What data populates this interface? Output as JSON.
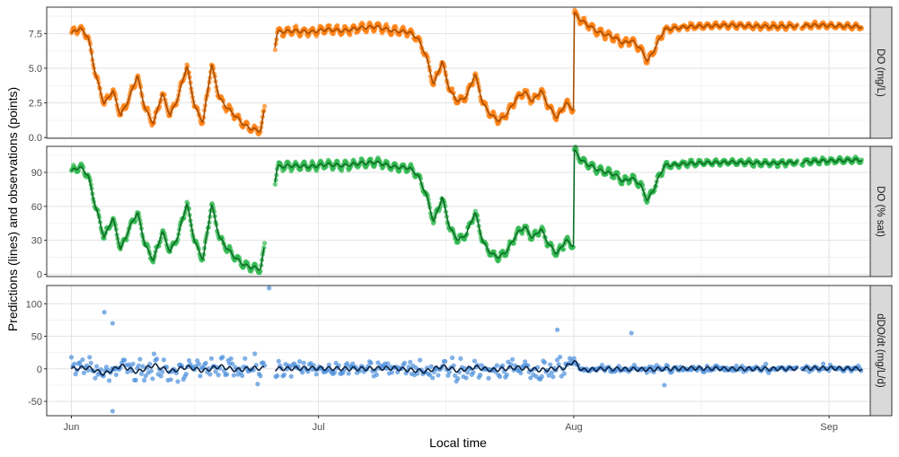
{
  "chart_data": {
    "type": "scatter",
    "xlabel": "Local time",
    "ylabel": "Predictions (lines) and observations (points)",
    "x_axis": {
      "type": "date",
      "range": [
        "2012-05-29",
        "2012-09-06"
      ],
      "ticks": [
        {
          "value": "2012-06-01",
          "label": "Jun"
        },
        {
          "value": "2012-07-01",
          "label": "Jul"
        },
        {
          "value": "2012-08-01",
          "label": "Aug"
        },
        {
          "value": "2012-09-01",
          "label": "Sep"
        }
      ]
    },
    "grid": true,
    "panels": [
      {
        "strip": "DO (mg/L)",
        "ylim": [
          -0.05,
          9.4
        ],
        "yticks": [
          0.0,
          2.5,
          5.0,
          7.5
        ],
        "ytick_labels": [
          "0.0",
          "2.5",
          "5.0",
          "7.5"
        ],
        "point_color": "#ff7f0e",
        "line_color": "#a64c00",
        "series": [
          {
            "x": "2012-06-01",
            "y": 7.5
          },
          {
            "x": "2012-06-02",
            "y": 7.9
          },
          {
            "x": "2012-06-03",
            "y": 7.3
          },
          {
            "x": "2012-06-04",
            "y": 4.4
          },
          {
            "x": "2012-06-05",
            "y": 2.4
          },
          {
            "x": "2012-06-06",
            "y": 3.4
          },
          {
            "x": "2012-06-07",
            "y": 1.6
          },
          {
            "x": "2012-06-08",
            "y": 2.8
          },
          {
            "x": "2012-06-09",
            "y": 4.5
          },
          {
            "x": "2012-06-10",
            "y": 2.0
          },
          {
            "x": "2012-06-11",
            "y": 1.0
          },
          {
            "x": "2012-06-12",
            "y": 3.2
          },
          {
            "x": "2012-06-13",
            "y": 1.6
          },
          {
            "x": "2012-06-14",
            "y": 3.0
          },
          {
            "x": "2012-06-15",
            "y": 5.2
          },
          {
            "x": "2012-06-16",
            "y": 2.2
          },
          {
            "x": "2012-06-17",
            "y": 1.1
          },
          {
            "x": "2012-06-18",
            "y": 5.3
          },
          {
            "x": "2012-06-19",
            "y": 2.8
          },
          {
            "x": "2012-06-20",
            "y": 2.1
          },
          {
            "x": "2012-06-21",
            "y": 1.5
          },
          {
            "x": "2012-06-22",
            "y": 0.9
          },
          {
            "x": "2012-06-23",
            "y": 0.6
          },
          {
            "x": "2012-06-24",
            "y": 0.5
          },
          {
            "x": "2012-06-26",
            "y": 7.6
          },
          {
            "x": "2012-06-28",
            "y": 7.7
          },
          {
            "x": "2012-06-30",
            "y": 7.6
          },
          {
            "x": "2012-07-02",
            "y": 7.8
          },
          {
            "x": "2012-07-04",
            "y": 7.7
          },
          {
            "x": "2012-07-06",
            "y": 7.9
          },
          {
            "x": "2012-07-08",
            "y": 8.0
          },
          {
            "x": "2012-07-10",
            "y": 7.7
          },
          {
            "x": "2012-07-12",
            "y": 7.6
          },
          {
            "x": "2012-07-13",
            "y": 7.2
          },
          {
            "x": "2012-07-14",
            "y": 6.0
          },
          {
            "x": "2012-07-15",
            "y": 3.8
          },
          {
            "x": "2012-07-16",
            "y": 5.5
          },
          {
            "x": "2012-07-17",
            "y": 3.3
          },
          {
            "x": "2012-07-18",
            "y": 2.6
          },
          {
            "x": "2012-07-19",
            "y": 3.0
          },
          {
            "x": "2012-07-20",
            "y": 4.6
          },
          {
            "x": "2012-07-21",
            "y": 2.4
          },
          {
            "x": "2012-07-22",
            "y": 1.6
          },
          {
            "x": "2012-07-23",
            "y": 1.2
          },
          {
            "x": "2012-07-24",
            "y": 1.8
          },
          {
            "x": "2012-07-25",
            "y": 2.8
          },
          {
            "x": "2012-07-26",
            "y": 3.3
          },
          {
            "x": "2012-07-27",
            "y": 2.6
          },
          {
            "x": "2012-07-28",
            "y": 3.4
          },
          {
            "x": "2012-07-29",
            "y": 2.2
          },
          {
            "x": "2012-07-30",
            "y": 1.4
          },
          {
            "x": "2012-07-31",
            "y": 2.5
          },
          {
            "x": "2012-08-01",
            "y": 2.0
          },
          {
            "x": "2012-08-01",
            "y": 9.0
          },
          {
            "x": "2012-08-02",
            "y": 8.4
          },
          {
            "x": "2012-08-03",
            "y": 8.0
          },
          {
            "x": "2012-08-04",
            "y": 7.6
          },
          {
            "x": "2012-08-05",
            "y": 7.4
          },
          {
            "x": "2012-08-06",
            "y": 7.2
          },
          {
            "x": "2012-08-07",
            "y": 6.8
          },
          {
            "x": "2012-08-08",
            "y": 7.0
          },
          {
            "x": "2012-08-09",
            "y": 6.5
          },
          {
            "x": "2012-08-10",
            "y": 5.5
          },
          {
            "x": "2012-08-11",
            "y": 6.6
          },
          {
            "x": "2012-08-12",
            "y": 7.8
          },
          {
            "x": "2012-08-15",
            "y": 8.0
          },
          {
            "x": "2012-08-20",
            "y": 8.1
          },
          {
            "x": "2012-08-25",
            "y": 8.0
          },
          {
            "x": "2012-08-31",
            "y": 8.1
          },
          {
            "x": "2012-09-05",
            "y": 8.0
          }
        ]
      },
      {
        "strip": "DO (% sat)",
        "ylim": [
          -2,
          113
        ],
        "yticks": [
          0,
          30,
          60,
          90
        ],
        "ytick_labels": [
          "0",
          "30",
          "60",
          "90"
        ],
        "point_color": "#2db84d",
        "line_color": "#0e6b24",
        "series": [
          {
            "x": "2012-06-01",
            "y": 91
          },
          {
            "x": "2012-06-02",
            "y": 95
          },
          {
            "x": "2012-06-03",
            "y": 88
          },
          {
            "x": "2012-06-04",
            "y": 58
          },
          {
            "x": "2012-06-05",
            "y": 32
          },
          {
            "x": "2012-06-06",
            "y": 50
          },
          {
            "x": "2012-06-07",
            "y": 22
          },
          {
            "x": "2012-06-08",
            "y": 40
          },
          {
            "x": "2012-06-09",
            "y": 55
          },
          {
            "x": "2012-06-10",
            "y": 25
          },
          {
            "x": "2012-06-11",
            "y": 12
          },
          {
            "x": "2012-06-12",
            "y": 38
          },
          {
            "x": "2012-06-13",
            "y": 20
          },
          {
            "x": "2012-06-14",
            "y": 35
          },
          {
            "x": "2012-06-15",
            "y": 63
          },
          {
            "x": "2012-06-16",
            "y": 28
          },
          {
            "x": "2012-06-17",
            "y": 13
          },
          {
            "x": "2012-06-18",
            "y": 62
          },
          {
            "x": "2012-06-19",
            "y": 32
          },
          {
            "x": "2012-06-20",
            "y": 22
          },
          {
            "x": "2012-06-21",
            "y": 14
          },
          {
            "x": "2012-06-22",
            "y": 8
          },
          {
            "x": "2012-06-23",
            "y": 6
          },
          {
            "x": "2012-06-24",
            "y": 5
          },
          {
            "x": "2012-06-26",
            "y": 95
          },
          {
            "x": "2012-06-28",
            "y": 96
          },
          {
            "x": "2012-06-30",
            "y": 95
          },
          {
            "x": "2012-07-02",
            "y": 97
          },
          {
            "x": "2012-07-04",
            "y": 96
          },
          {
            "x": "2012-07-06",
            "y": 98
          },
          {
            "x": "2012-07-08",
            "y": 99
          },
          {
            "x": "2012-07-10",
            "y": 95
          },
          {
            "x": "2012-07-12",
            "y": 94
          },
          {
            "x": "2012-07-13",
            "y": 88
          },
          {
            "x": "2012-07-14",
            "y": 72
          },
          {
            "x": "2012-07-15",
            "y": 46
          },
          {
            "x": "2012-07-16",
            "y": 68
          },
          {
            "x": "2012-07-17",
            "y": 40
          },
          {
            "x": "2012-07-18",
            "y": 30
          },
          {
            "x": "2012-07-19",
            "y": 36
          },
          {
            "x": "2012-07-20",
            "y": 55
          },
          {
            "x": "2012-07-21",
            "y": 28
          },
          {
            "x": "2012-07-22",
            "y": 18
          },
          {
            "x": "2012-07-23",
            "y": 15
          },
          {
            "x": "2012-07-24",
            "y": 22
          },
          {
            "x": "2012-07-25",
            "y": 35
          },
          {
            "x": "2012-07-26",
            "y": 42
          },
          {
            "x": "2012-07-27",
            "y": 32
          },
          {
            "x": "2012-07-28",
            "y": 40
          },
          {
            "x": "2012-07-29",
            "y": 26
          },
          {
            "x": "2012-07-30",
            "y": 18
          },
          {
            "x": "2012-07-31",
            "y": 30
          },
          {
            "x": "2012-08-01",
            "y": 25
          },
          {
            "x": "2012-08-01",
            "y": 110
          },
          {
            "x": "2012-08-02",
            "y": 100
          },
          {
            "x": "2012-08-03",
            "y": 96
          },
          {
            "x": "2012-08-04",
            "y": 92
          },
          {
            "x": "2012-08-05",
            "y": 90
          },
          {
            "x": "2012-08-06",
            "y": 88
          },
          {
            "x": "2012-08-07",
            "y": 82
          },
          {
            "x": "2012-08-08",
            "y": 85
          },
          {
            "x": "2012-08-09",
            "y": 80
          },
          {
            "x": "2012-08-10",
            "y": 65
          },
          {
            "x": "2012-08-11",
            "y": 80
          },
          {
            "x": "2012-08-12",
            "y": 96
          },
          {
            "x": "2012-08-15",
            "y": 98
          },
          {
            "x": "2012-08-20",
            "y": 99
          },
          {
            "x": "2012-08-25",
            "y": 98
          },
          {
            "x": "2012-08-31",
            "y": 100
          },
          {
            "x": "2012-09-05",
            "y": 101
          }
        ]
      },
      {
        "strip": "dDO/dt (mg/L/d)",
        "ylim": [
          -72,
          128
        ],
        "yticks": [
          -50,
          0,
          50,
          100
        ],
        "ytick_labels": [
          "-50",
          "0",
          "50",
          "100"
        ],
        "point_color": "#4a8fdc",
        "line_color": "#0d2140",
        "series": [
          {
            "x": "2012-06-01",
            "y": 0
          },
          {
            "x": "2012-06-03",
            "y": 2
          },
          {
            "x": "2012-06-05",
            "y": -8
          },
          {
            "x": "2012-06-07",
            "y": 5
          },
          {
            "x": "2012-06-09",
            "y": -5
          },
          {
            "x": "2012-06-11",
            "y": 6
          },
          {
            "x": "2012-06-13",
            "y": -4
          },
          {
            "x": "2012-06-15",
            "y": 3
          },
          {
            "x": "2012-06-17",
            "y": -3
          },
          {
            "x": "2012-06-19",
            "y": 4
          },
          {
            "x": "2012-06-21",
            "y": -2
          },
          {
            "x": "2012-06-23",
            "y": 1
          },
          {
            "x": "2012-06-26",
            "y": 0
          },
          {
            "x": "2012-06-30",
            "y": 1
          },
          {
            "x": "2012-07-05",
            "y": 0
          },
          {
            "x": "2012-07-10",
            "y": 1
          },
          {
            "x": "2012-07-14",
            "y": -4
          },
          {
            "x": "2012-07-16",
            "y": 4
          },
          {
            "x": "2012-07-18",
            "y": -3
          },
          {
            "x": "2012-07-20",
            "y": 3
          },
          {
            "x": "2012-07-22",
            "y": -2
          },
          {
            "x": "2012-07-25",
            "y": 2
          },
          {
            "x": "2012-07-28",
            "y": -2
          },
          {
            "x": "2012-07-31",
            "y": 2
          },
          {
            "x": "2012-08-01",
            "y": 12
          },
          {
            "x": "2012-08-02",
            "y": -2
          },
          {
            "x": "2012-08-05",
            "y": 0
          },
          {
            "x": "2012-08-10",
            "y": -1
          },
          {
            "x": "2012-08-15",
            "y": 1
          },
          {
            "x": "2012-08-20",
            "y": 0
          },
          {
            "x": "2012-08-25",
            "y": 0
          },
          {
            "x": "2012-08-31",
            "y": 1
          },
          {
            "x": "2012-09-05",
            "y": 0
          }
        ]
      }
    ]
  }
}
